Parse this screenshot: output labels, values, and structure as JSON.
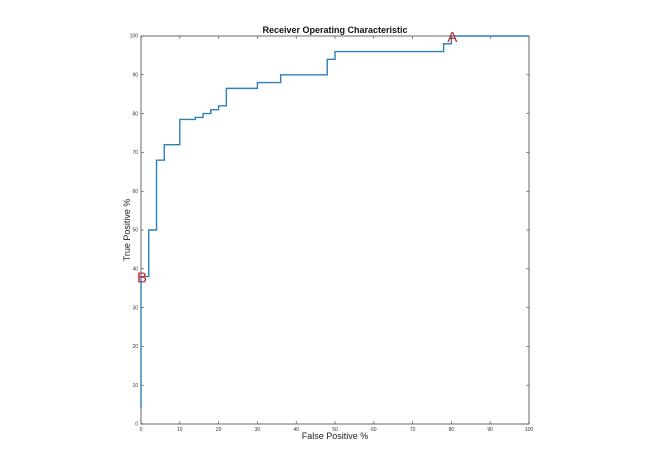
{
  "chart_data": {
    "type": "line",
    "title": "Receiver Operating Characteristic",
    "xlabel": "False Positive %",
    "ylabel": "True Positive %",
    "xlim": [
      0,
      100
    ],
    "ylim": [
      0,
      100
    ],
    "xticks": [
      0,
      10,
      20,
      30,
      40,
      50,
      60,
      70,
      80,
      90,
      100
    ],
    "yticks": [
      0,
      10,
      20,
      30,
      40,
      50,
      60,
      70,
      80,
      90,
      100
    ],
    "grid": false,
    "legend": "none",
    "series": [
      {
        "color": "#2f7fb8",
        "x": [
          0,
          0,
          2,
          2,
          4,
          4,
          6,
          6,
          10,
          10,
          14,
          14,
          16,
          16,
          18,
          18,
          20,
          20,
          22,
          22,
          30,
          30,
          36,
          36,
          48,
          48,
          50,
          50,
          78,
          78,
          80,
          80,
          100
        ],
        "y": [
          4,
          38,
          38,
          50,
          50,
          68,
          68,
          72,
          72,
          78.5,
          78.5,
          79,
          79,
          80,
          80,
          81,
          81,
          82,
          82,
          86.5,
          86.5,
          88,
          88,
          90,
          90,
          94,
          94,
          96,
          96,
          98,
          98,
          100,
          100
        ]
      }
    ],
    "annotations": [
      {
        "text": "A",
        "x": 80,
        "y": 100,
        "color": "#c0282d"
      },
      {
        "text": "B",
        "x": 0,
        "y": 38,
        "color": "#c0282d"
      }
    ]
  }
}
